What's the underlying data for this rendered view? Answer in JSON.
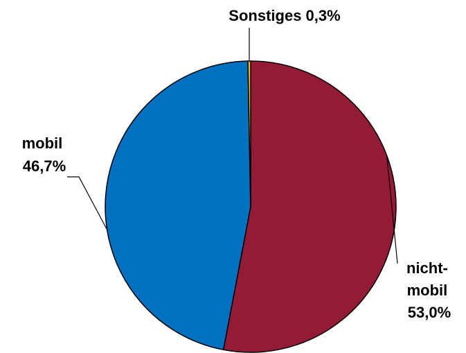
{
  "chart_data": {
    "type": "pie",
    "categories": [
      "nicht-mobil",
      "mobil",
      "Sonstiges"
    ],
    "values": [
      53.0,
      46.7,
      0.3
    ],
    "unit": "%",
    "colors": [
      "#941A36",
      "#0070C0",
      "#FFC000"
    ],
    "labels": [
      {
        "lines": [
          "nicht-",
          "mobil",
          "53,0%"
        ]
      },
      {
        "lines": [
          "mobil",
          "46,7%"
        ]
      },
      {
        "lines": [
          "Sonstiges 0,3%"
        ]
      }
    ],
    "title": "",
    "legend": "none"
  }
}
